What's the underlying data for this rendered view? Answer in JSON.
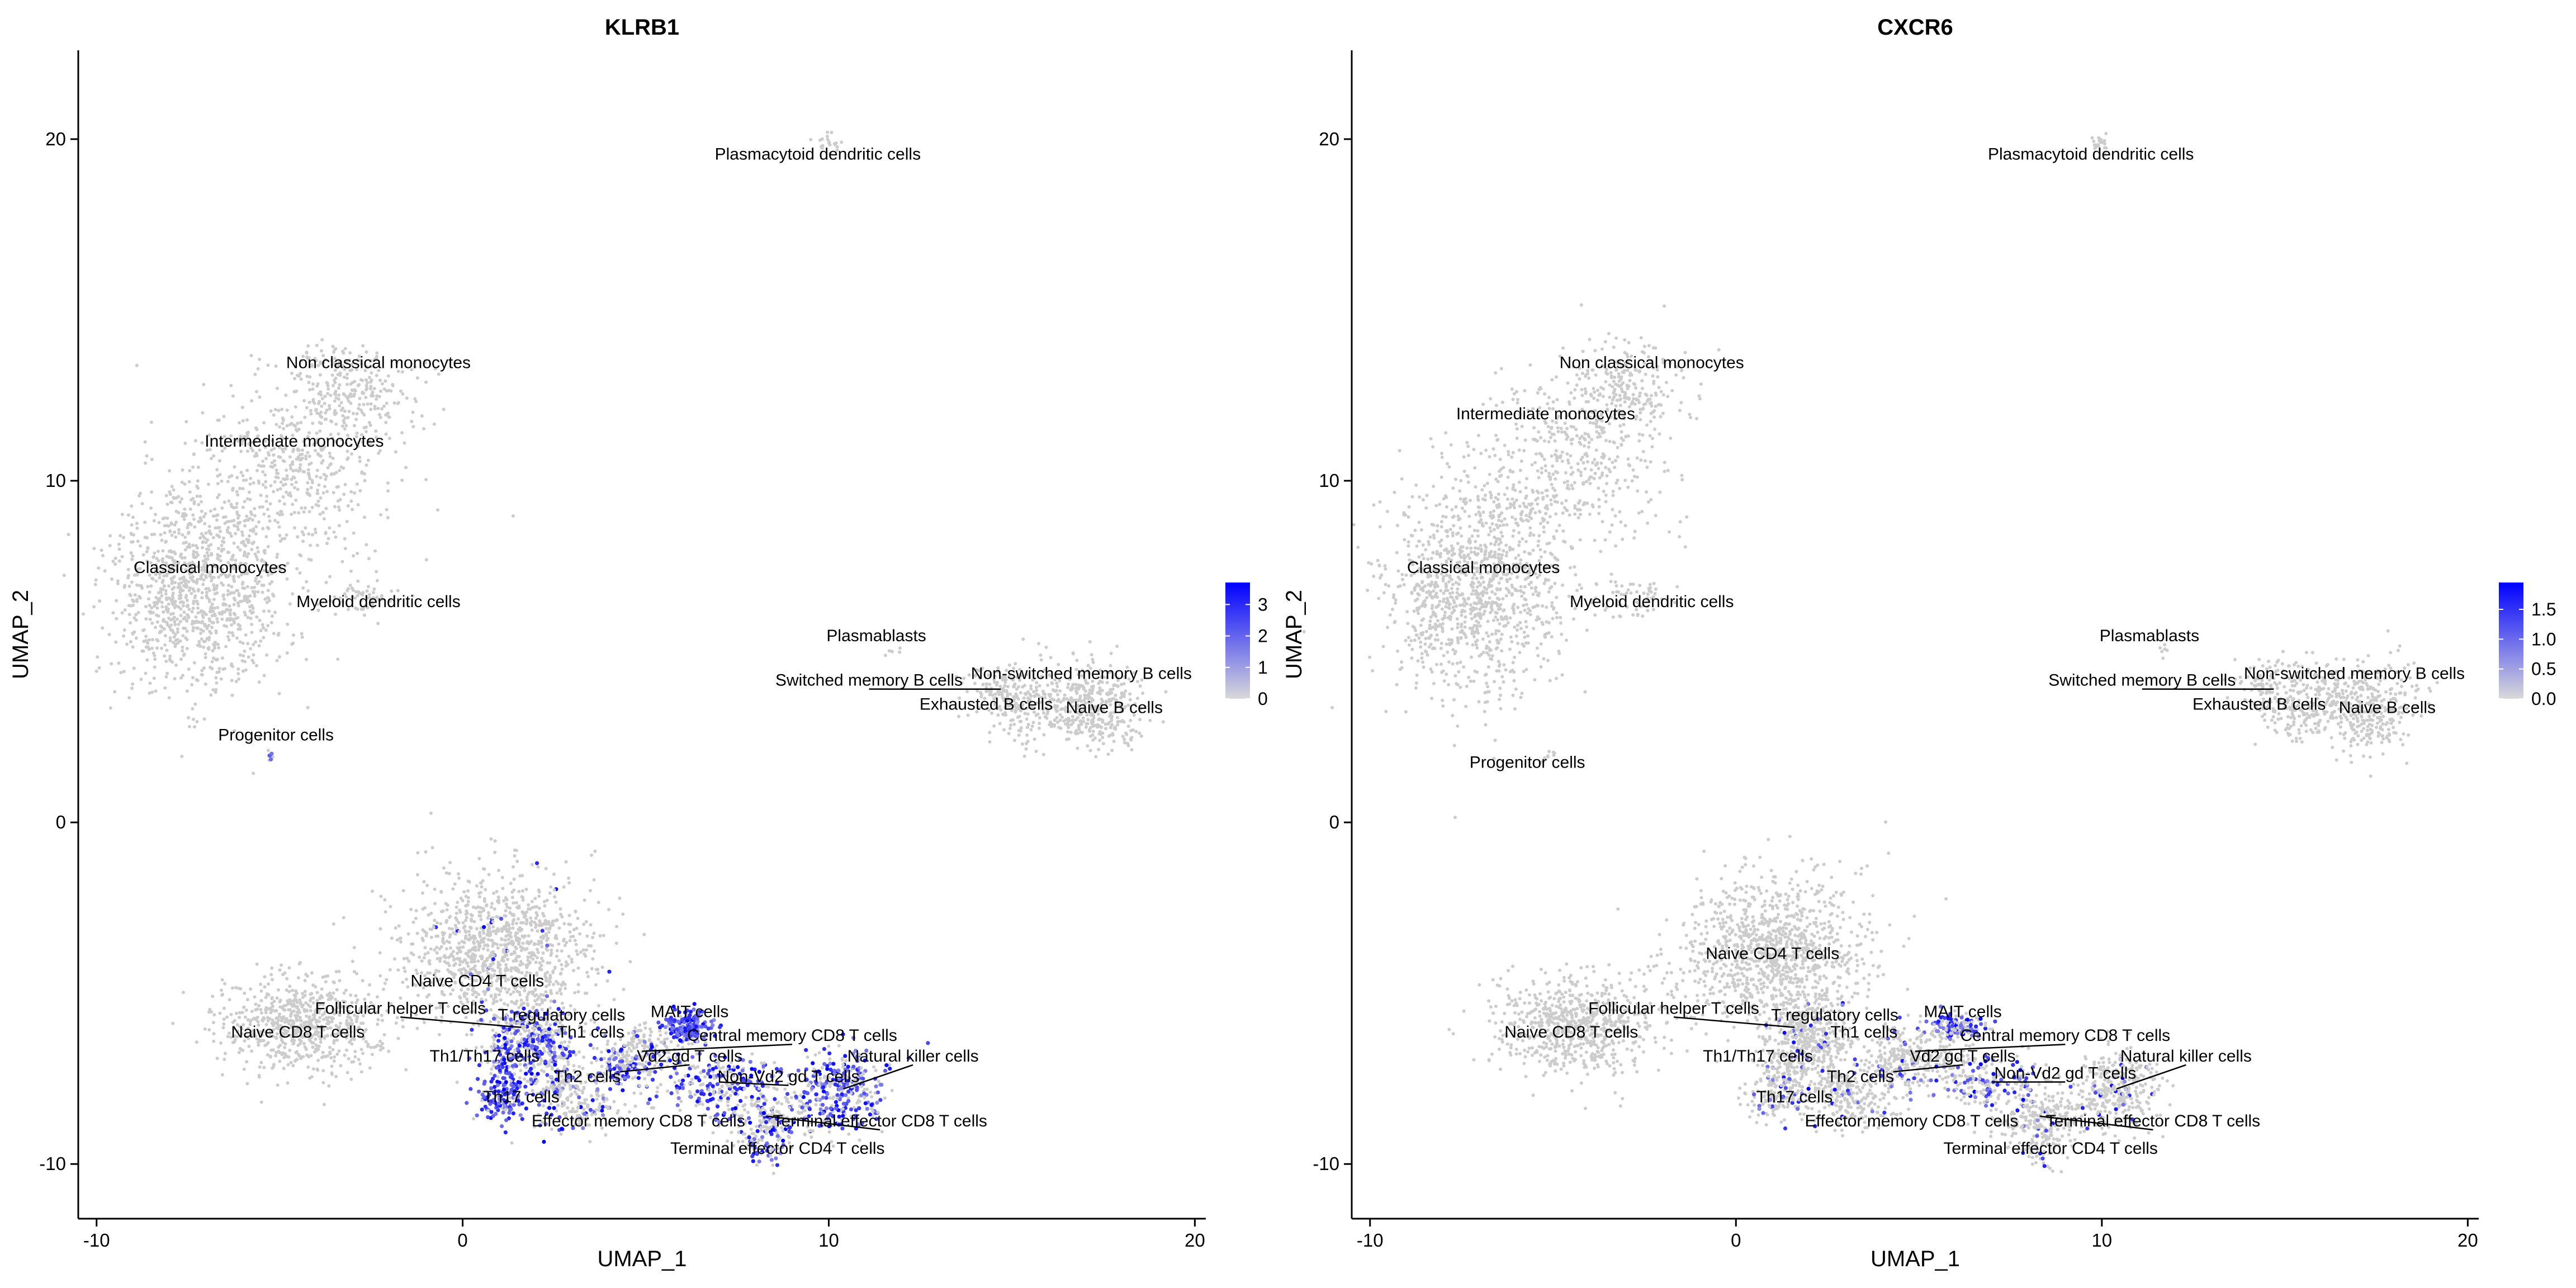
{
  "chart_data": [
    {
      "type": "scatter",
      "subtype": "umap-feature-plot",
      "title": "KLRB1",
      "xlabel": "UMAP_1",
      "ylabel": "UMAP_2",
      "xlim": [
        -10.5,
        20.3
      ],
      "ylim": [
        -11.6,
        22.6
      ],
      "xticks": [
        -10,
        0,
        10,
        20
      ],
      "yticks": [
        -10,
        0,
        10,
        20
      ],
      "grid": false,
      "legend": {
        "position": "right",
        "type": "colorbar",
        "ticks": [
          "3",
          "2",
          "1",
          "0"
        ],
        "min": 0,
        "max": 3.7,
        "low_color": "#d9d9d9",
        "high_color": "#0000ff"
      },
      "clusters": [
        {
          "name": "Plasmacytoid dendritic cells",
          "x": 9.7,
          "y": 19.4,
          "center": [
            10.0,
            19.9
          ],
          "sx": 0.15,
          "sy": 0.15,
          "n": 20,
          "expr": 0.0
        },
        {
          "name": "Non classical monocytes",
          "x": -2.3,
          "y": 13.3,
          "center": [
            -3.2,
            12.5
          ],
          "sx": 0.9,
          "sy": 0.8,
          "n": 300,
          "expr": 0.0
        },
        {
          "name": "Intermediate monocytes",
          "x": -4.6,
          "y": 11.0,
          "center": [
            -4.8,
            10.2
          ],
          "sx": 1.3,
          "sy": 1.2,
          "n": 450,
          "expr": 0.0
        },
        {
          "name": "Classical monocytes",
          "x": -6.9,
          "y": 7.3,
          "center": [
            -7.2,
            6.8
          ],
          "sx": 1.2,
          "sy": 1.5,
          "n": 1100,
          "expr": 0.0
        },
        {
          "name": "Myeloid dendritic cells",
          "x": -2.3,
          "y": 6.3,
          "center": [
            -2.8,
            6.6
          ],
          "sx": 0.5,
          "sy": 0.3,
          "n": 60,
          "expr": 0.0
        },
        {
          "name": "Plasmablasts",
          "x": 11.3,
          "y": 5.3,
          "center": [
            11.7,
            5.0
          ],
          "sx": 0.1,
          "sy": 0.1,
          "n": 6,
          "expr": 0.0
        },
        {
          "name": "Switched memory B cells",
          "x": 11.1,
          "y": 4.0,
          "center": [
            14.7,
            3.9
          ],
          "sx": 0.5,
          "sy": 0.4,
          "n": 120,
          "expr": 0.0
        },
        {
          "name": "Non-switched memory B cells",
          "x": 16.9,
          "y": 4.2,
          "center": [
            16.8,
            3.9
          ],
          "sx": 0.9,
          "sy": 0.5,
          "n": 200,
          "expr": 0.0
        },
        {
          "name": "Exhausted B cells",
          "x": 14.3,
          "y": 3.3,
          "center": [
            15.5,
            3.1
          ],
          "sx": 0.6,
          "sy": 0.4,
          "n": 120,
          "expr": 0.0
        },
        {
          "name": "Naive B cells",
          "x": 17.8,
          "y": 3.2,
          "center": [
            17.4,
            3.0
          ],
          "sx": 0.6,
          "sy": 0.5,
          "n": 200,
          "expr": 0.0
        },
        {
          "name": "Progenitor cells",
          "x": -5.1,
          "y": 2.4,
          "center": [
            -5.2,
            1.9
          ],
          "sx": 0.1,
          "sy": 0.1,
          "n": 8,
          "expr": 0.4
        },
        {
          "name": "Naive CD4 T cells",
          "x": 0.4,
          "y": -4.8,
          "center": [
            1.0,
            -3.8
          ],
          "sx": 1.3,
          "sy": 1.1,
          "n": 1100,
          "expr": 0.02
        },
        {
          "name": "Naive CD8 T cells",
          "x": -4.5,
          "y": -6.3,
          "center": [
            -4.4,
            -5.9
          ],
          "sx": 1.1,
          "sy": 0.7,
          "n": 700,
          "expr": 0.0
        },
        {
          "name": "Follicular helper T cells",
          "x": -1.7,
          "y": -5.6,
          "center": [
            1.6,
            -6.0
          ],
          "sx": 0.5,
          "sy": 0.4,
          "n": 120,
          "expr": 0.35
        },
        {
          "name": "T regulatory cells",
          "x": 2.7,
          "y": -5.8,
          "center": [
            2.2,
            -6.1
          ],
          "sx": 0.4,
          "sy": 0.4,
          "n": 100,
          "expr": 0.3
        },
        {
          "name": "Th1 cells",
          "x": 3.5,
          "y": -6.3,
          "center": [
            2.4,
            -6.6
          ],
          "sx": 0.4,
          "sy": 0.3,
          "n": 90,
          "expr": 0.45
        },
        {
          "name": "MAIT cells",
          "x": 6.2,
          "y": -5.7,
          "center": [
            6.1,
            -6.0
          ],
          "sx": 0.35,
          "sy": 0.2,
          "n": 160,
          "expr": 0.95
        },
        {
          "name": "Central memory CD8 T cells",
          "x": 9.0,
          "y": -6.4,
          "center": [
            4.9,
            -6.7
          ],
          "sx": 0.6,
          "sy": 0.4,
          "n": 200,
          "expr": 0.15
        },
        {
          "name": "Th1/Th17 cells",
          "x": 0.6,
          "y": -7.0,
          "center": [
            1.4,
            -7.0
          ],
          "sx": 0.45,
          "sy": 0.4,
          "n": 140,
          "expr": 0.6
        },
        {
          "name": "Vd2 gd T cells",
          "x": 6.2,
          "y": -7.0,
          "center": [
            4.3,
            -7.3
          ],
          "sx": 0.4,
          "sy": 0.3,
          "n": 90,
          "expr": 0.55
        },
        {
          "name": "Natural killer cells",
          "x": 12.3,
          "y": -7.0,
          "center": [
            10.4,
            -7.8
          ],
          "sx": 0.6,
          "sy": 0.6,
          "n": 320,
          "expr": 0.65
        },
        {
          "name": "Th2 cells",
          "x": 3.4,
          "y": -7.6,
          "center": [
            2.6,
            -7.6
          ],
          "sx": 0.4,
          "sy": 0.35,
          "n": 110,
          "expr": 0.25
        },
        {
          "name": "Non-Vd2 gd T cells",
          "x": 8.9,
          "y": -7.6,
          "center": [
            7.0,
            -7.6
          ],
          "sx": 0.9,
          "sy": 0.4,
          "n": 220,
          "expr": 0.5
        },
        {
          "name": "Th17 cells",
          "x": 1.6,
          "y": -8.2,
          "center": [
            1.1,
            -8.1
          ],
          "sx": 0.4,
          "sy": 0.35,
          "n": 130,
          "expr": 0.8
        },
        {
          "name": "Effector memory CD8 T cells",
          "x": 4.8,
          "y": -8.9,
          "center": [
            3.2,
            -8.3
          ],
          "sx": 0.6,
          "sy": 0.4,
          "n": 150,
          "expr": 0.25
        },
        {
          "name": "Terminal effector CD8 T cells",
          "x": 11.4,
          "y": -8.9,
          "center": [
            8.3,
            -8.6
          ],
          "sx": 0.7,
          "sy": 0.4,
          "n": 220,
          "expr": 0.3
        },
        {
          "name": "Terminal effector CD4 T cells",
          "x": 8.6,
          "y": -9.7,
          "center": [
            8.3,
            -9.5
          ],
          "sx": 0.4,
          "sy": 0.25,
          "n": 60,
          "expr": 0.35
        }
      ]
    },
    {
      "type": "scatter",
      "subtype": "umap-feature-plot",
      "title": "CXCR6",
      "xlabel": "UMAP_1",
      "ylabel": "UMAP_2",
      "xlim": [
        -10.5,
        20.3
      ],
      "ylim": [
        -11.6,
        22.6
      ],
      "xticks": [
        -10,
        0,
        10,
        20
      ],
      "yticks": [
        -10,
        0,
        10,
        20
      ],
      "grid": false,
      "legend": {
        "position": "right",
        "type": "colorbar",
        "ticks": [
          "1.5",
          "1.0",
          "0.5",
          "0.0"
        ],
        "min": 0,
        "max": 1.95,
        "low_color": "#d9d9d9",
        "high_color": "#0000ff"
      },
      "clusters": [
        {
          "name": "Plasmacytoid dendritic cells",
          "x": 9.7,
          "y": 19.4,
          "center": [
            10.0,
            19.9
          ],
          "sx": 0.15,
          "sy": 0.15,
          "n": 20,
          "expr": 0.0
        },
        {
          "name": "Non classical monocytes",
          "x": -2.3,
          "y": 13.3,
          "center": [
            -3.2,
            12.5
          ],
          "sx": 0.9,
          "sy": 0.8,
          "n": 300,
          "expr": 0.0
        },
        {
          "name": "Intermediate monocytes",
          "x": -5.2,
          "y": 11.8,
          "center": [
            -4.8,
            10.2
          ],
          "sx": 1.3,
          "sy": 1.2,
          "n": 450,
          "expr": 0.0
        },
        {
          "name": "Classical monocytes",
          "x": -6.9,
          "y": 7.3,
          "center": [
            -7.2,
            6.8
          ],
          "sx": 1.2,
          "sy": 1.5,
          "n": 1100,
          "expr": 0.0
        },
        {
          "name": "Myeloid dendritic cells",
          "x": -2.3,
          "y": 6.3,
          "center": [
            -2.8,
            6.6
          ],
          "sx": 0.5,
          "sy": 0.3,
          "n": 60,
          "expr": 0.0
        },
        {
          "name": "Plasmablasts",
          "x": 11.3,
          "y": 5.3,
          "center": [
            11.7,
            5.0
          ],
          "sx": 0.1,
          "sy": 0.1,
          "n": 6,
          "expr": 0.0
        },
        {
          "name": "Switched memory B cells",
          "x": 11.1,
          "y": 4.0,
          "center": [
            14.7,
            3.9
          ],
          "sx": 0.5,
          "sy": 0.4,
          "n": 120,
          "expr": 0.0
        },
        {
          "name": "Non-switched memory B cells",
          "x": 16.9,
          "y": 4.2,
          "center": [
            16.8,
            3.9
          ],
          "sx": 0.9,
          "sy": 0.5,
          "n": 200,
          "expr": 0.0
        },
        {
          "name": "Exhausted B cells",
          "x": 14.3,
          "y": 3.3,
          "center": [
            15.5,
            3.1
          ],
          "sx": 0.6,
          "sy": 0.4,
          "n": 120,
          "expr": 0.0
        },
        {
          "name": "Naive B cells",
          "x": 17.8,
          "y": 3.2,
          "center": [
            17.4,
            3.0
          ],
          "sx": 0.6,
          "sy": 0.5,
          "n": 200,
          "expr": 0.0
        },
        {
          "name": "Progenitor cells",
          "x": -5.7,
          "y": 1.6,
          "center": [
            -5.2,
            1.9
          ],
          "sx": 0.1,
          "sy": 0.1,
          "n": 8,
          "expr": 0.0
        },
        {
          "name": "Naive CD4 T cells",
          "x": 1.0,
          "y": -4.0,
          "center": [
            1.0,
            -3.8
          ],
          "sx": 1.3,
          "sy": 1.1,
          "n": 1100,
          "expr": 0.0
        },
        {
          "name": "Naive CD8 T cells",
          "x": -4.5,
          "y": -6.3,
          "center": [
            -4.4,
            -5.9
          ],
          "sx": 1.1,
          "sy": 0.7,
          "n": 700,
          "expr": 0.0
        },
        {
          "name": "Follicular helper T cells",
          "x": -1.7,
          "y": -5.6,
          "center": [
            1.6,
            -6.0
          ],
          "sx": 0.5,
          "sy": 0.4,
          "n": 120,
          "expr": 0.05
        },
        {
          "name": "T regulatory cells",
          "x": 2.7,
          "y": -5.8,
          "center": [
            2.2,
            -6.1
          ],
          "sx": 0.4,
          "sy": 0.4,
          "n": 100,
          "expr": 0.05
        },
        {
          "name": "Th1 cells",
          "x": 3.5,
          "y": -6.3,
          "center": [
            2.4,
            -6.6
          ],
          "sx": 0.4,
          "sy": 0.3,
          "n": 90,
          "expr": 0.1
        },
        {
          "name": "MAIT cells",
          "x": 6.2,
          "y": -5.7,
          "center": [
            6.1,
            -6.0
          ],
          "sx": 0.35,
          "sy": 0.2,
          "n": 160,
          "expr": 0.45
        },
        {
          "name": "Central memory CD8 T cells",
          "x": 9.0,
          "y": -6.4,
          "center": [
            4.9,
            -6.7
          ],
          "sx": 0.6,
          "sy": 0.4,
          "n": 200,
          "expr": 0.05
        },
        {
          "name": "Th1/Th17 cells",
          "x": 0.6,
          "y": -7.0,
          "center": [
            1.4,
            -7.0
          ],
          "sx": 0.45,
          "sy": 0.4,
          "n": 140,
          "expr": 0.1
        },
        {
          "name": "Vd2 gd T cells",
          "x": 6.2,
          "y": -7.0,
          "center": [
            4.3,
            -7.3
          ],
          "sx": 0.4,
          "sy": 0.3,
          "n": 90,
          "expr": 0.1
        },
        {
          "name": "Natural killer cells",
          "x": 12.3,
          "y": -7.0,
          "center": [
            10.4,
            -7.8
          ],
          "sx": 0.6,
          "sy": 0.6,
          "n": 320,
          "expr": 0.08
        },
        {
          "name": "Th2 cells",
          "x": 3.4,
          "y": -7.6,
          "center": [
            2.6,
            -7.6
          ],
          "sx": 0.4,
          "sy": 0.35,
          "n": 110,
          "expr": 0.05
        },
        {
          "name": "Non-Vd2 gd T cells",
          "x": 9.0,
          "y": -7.5,
          "center": [
            7.0,
            -7.6
          ],
          "sx": 0.9,
          "sy": 0.4,
          "n": 220,
          "expr": 0.3
        },
        {
          "name": "Th17 cells",
          "x": 1.6,
          "y": -8.2,
          "center": [
            1.1,
            -8.1
          ],
          "sx": 0.4,
          "sy": 0.35,
          "n": 130,
          "expr": 0.1
        },
        {
          "name": "Effector memory CD8 T cells",
          "x": 4.8,
          "y": -8.9,
          "center": [
            3.2,
            -8.3
          ],
          "sx": 0.6,
          "sy": 0.4,
          "n": 150,
          "expr": 0.08
        },
        {
          "name": "Terminal effector CD8 T cells",
          "x": 11.4,
          "y": -8.9,
          "center": [
            8.3,
            -8.6
          ],
          "sx": 0.7,
          "sy": 0.4,
          "n": 220,
          "expr": 0.05
        },
        {
          "name": "Terminal effector CD4 T cells",
          "x": 8.6,
          "y": -9.7,
          "center": [
            8.3,
            -9.5
          ],
          "sx": 0.4,
          "sy": 0.25,
          "n": 60,
          "expr": 0.05
        }
      ]
    }
  ]
}
